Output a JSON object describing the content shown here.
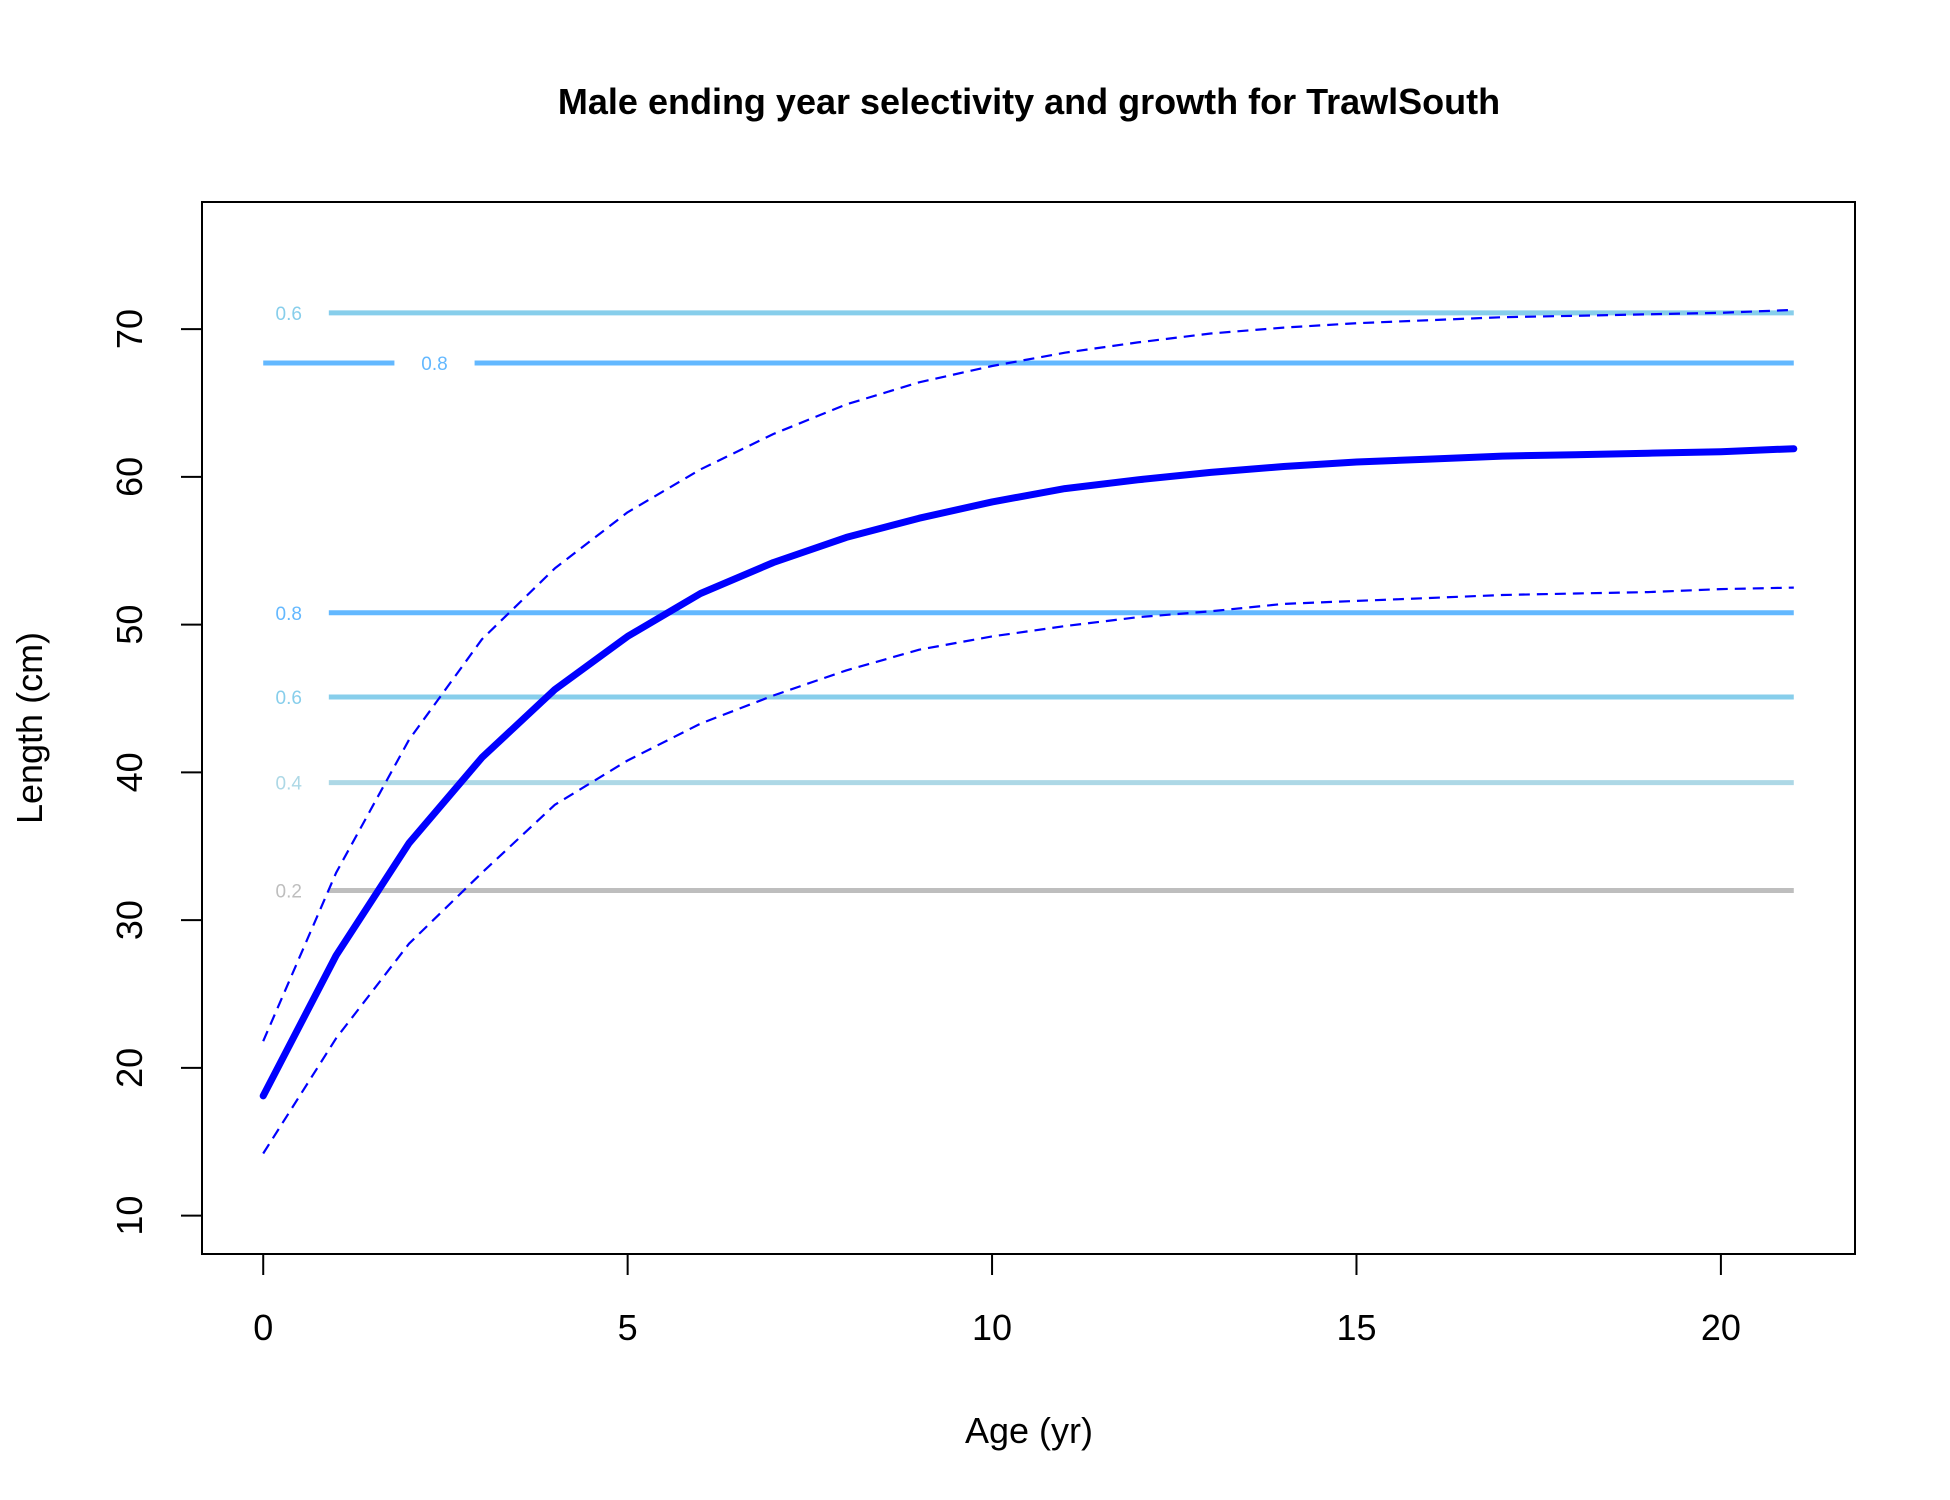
{
  "chart_data": {
    "type": "line",
    "title": "Male ending year selectivity and growth for TrawlSouth",
    "xlabel": "Age (yr)",
    "ylabel": "Length (cm)",
    "xlim": [
      -0.84,
      21.84
    ],
    "ylim": [
      7.4,
      78.6
    ],
    "xticks": [
      0,
      5,
      10,
      15,
      20
    ],
    "yticks": [
      10,
      20,
      30,
      40,
      50,
      60,
      70
    ],
    "grid": false,
    "legend": "none",
    "series": [
      {
        "role": "mean-length-at-age",
        "color": "#0000ff",
        "style": "solid-thick",
        "x": [
          0,
          1,
          2,
          3,
          4,
          5,
          6,
          7,
          8,
          9,
          10,
          11,
          12,
          13,
          14,
          15,
          16,
          17,
          18,
          19,
          20,
          21
        ],
        "y": [
          18.1,
          27.6,
          35.2,
          41.0,
          45.6,
          49.2,
          52.1,
          54.2,
          55.9,
          57.2,
          58.3,
          59.2,
          59.8,
          60.3,
          60.7,
          61.0,
          61.2,
          61.4,
          61.5,
          61.6,
          61.7,
          61.9
        ]
      },
      {
        "role": "upper-interval",
        "color": "#0000ff",
        "style": "dashed",
        "x": [
          0,
          1,
          2,
          3,
          4,
          5,
          6,
          7,
          8,
          9,
          10,
          11,
          12,
          13,
          14,
          15,
          16,
          17,
          18,
          19,
          20,
          21
        ],
        "y": [
          21.8,
          33.2,
          42.2,
          49.0,
          53.8,
          57.6,
          60.5,
          62.9,
          64.9,
          66.4,
          67.5,
          68.4,
          69.1,
          69.7,
          70.1,
          70.4,
          70.6,
          70.8,
          70.9,
          71.0,
          71.1,
          71.3
        ]
      },
      {
        "role": "lower-interval",
        "color": "#0000ff",
        "style": "dashed",
        "x": [
          0,
          1,
          2,
          3,
          4,
          5,
          6,
          7,
          8,
          9,
          10,
          11,
          12,
          13,
          14,
          15,
          16,
          17,
          18,
          19,
          20,
          21
        ],
        "y": [
          14.2,
          22.0,
          28.4,
          33.2,
          37.8,
          40.8,
          43.3,
          45.2,
          46.9,
          48.3,
          49.2,
          49.9,
          50.5,
          50.9,
          51.4,
          51.6,
          51.8,
          52.0,
          52.1,
          52.2,
          52.4,
          52.5
        ]
      }
    ],
    "contours": [
      {
        "level": "0.6",
        "y": 71.1,
        "color": "#87ceeb",
        "label_x": 0.35
      },
      {
        "level": "0.8",
        "y": 67.7,
        "color": "#63b8ff",
        "label_x": 2.35
      },
      {
        "level": "0.8",
        "y": 50.8,
        "color": "#63b8ff",
        "label_x": 0.35
      },
      {
        "level": "0.6",
        "y": 45.1,
        "color": "#87ceeb",
        "label_x": 0.35
      },
      {
        "level": "0.4",
        "y": 39.3,
        "color": "#add8e6",
        "label_x": 0.35
      },
      {
        "level": "0.2",
        "y": 32.0,
        "color": "#bebebe",
        "label_x": 0.35
      }
    ]
  }
}
